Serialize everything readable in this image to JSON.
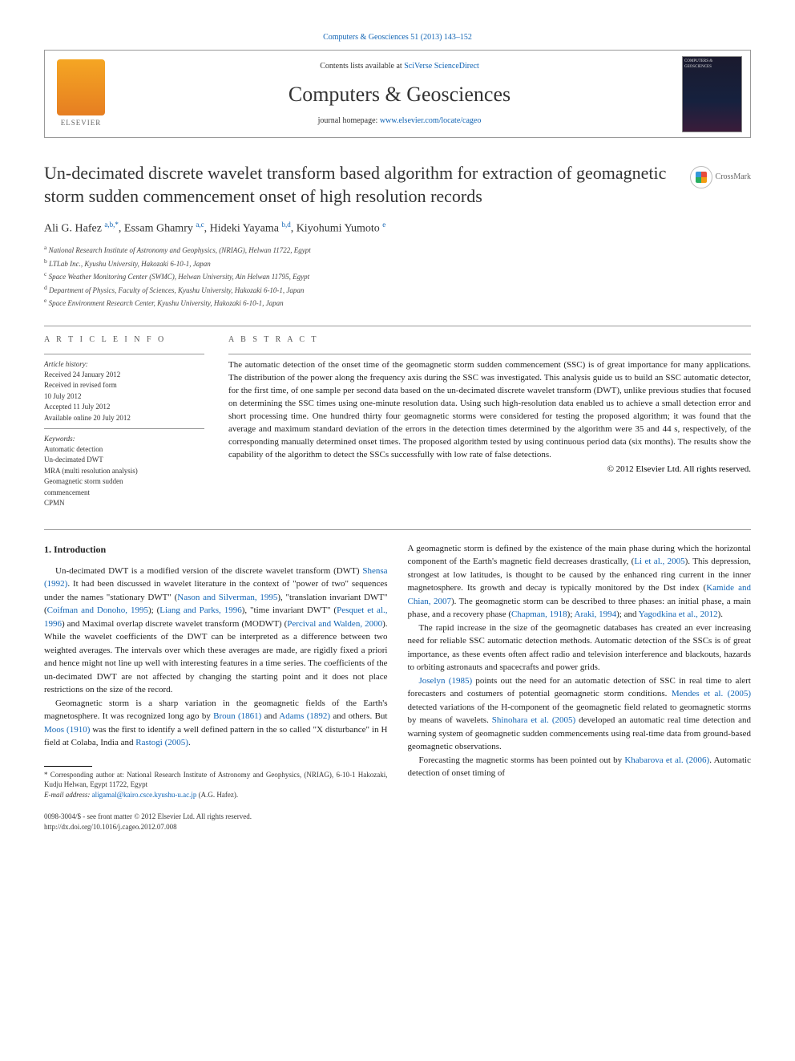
{
  "top_citation": "Computers & Geosciences 51 (2013) 143–152",
  "header": {
    "contents_pre": "Contents lists available at ",
    "contents_link": "SciVerse ScienceDirect",
    "journal_name": "Computers & Geosciences",
    "homepage_pre": "journal homepage: ",
    "homepage_link": "www.elsevier.com/locate/cageo",
    "elsevier_label": "ELSEVIER",
    "cover_text": "COMPUTERS & GEOSCIENCES"
  },
  "crossmark_label": "CrossMark",
  "title": "Un-decimated discrete wavelet transform based algorithm for extraction of geomagnetic storm sudden commencement onset of high resolution records",
  "authors_line": "Ali G. Hafez ",
  "author_sup1": "a,b,",
  "author_sup1_star": "*",
  "author2": ", Essam Ghamry ",
  "author_sup2": "a,c",
  "author3": ", Hideki Yayama ",
  "author_sup3": "b,d",
  "author4": ", Kiyohumi Yumoto ",
  "author_sup4": "e",
  "affiliations": {
    "a": "National Research Institute of Astronomy and Geophysics, (NRIAG), Helwan 11722, Egypt",
    "b": "LTLab Inc., Kyushu University, Hakozaki 6-10-1, Japan",
    "c": "Space Weather Monitoring Center (SWMC), Helwan University, Ain Helwan 11795, Egypt",
    "d": "Department of Physics, Faculty of Sciences, Kyushu University, Hakozaki 6-10-1, Japan",
    "e": "Space Environment Research Center, Kyushu University, Hakozaki 6-10-1, Japan"
  },
  "article_info_heading": "A R T I C L E  I N F O",
  "history": {
    "label": "Article history:",
    "items": [
      "Received 24 January 2012",
      "Received in revised form",
      "10 July 2012",
      "Accepted 11 July 2012",
      "Available online 20 July 2012"
    ]
  },
  "keywords_label": "Keywords:",
  "keywords": [
    "Automatic detection",
    "Un-decimated DWT",
    "MRA (multi resolution analysis)",
    "Geomagnetic storm sudden",
    "commencement",
    "CPMN"
  ],
  "abstract_heading": "A B S T R A C T",
  "abstract": "The automatic detection of the onset time of the geomagnetic storm sudden commencement (SSC) is of great importance for many applications. The distribution of the power along the frequency axis during the SSC was investigated. This analysis guide us to build an SSC automatic detector, for the first time, of one sample per second data based on the un-decimated discrete wavelet transform (DWT), unlike previous studies that focused on determining the SSC times using one-minute resolution data. Using such high-resolution data enabled us to achieve a small detection error and short processing time. One hundred thirty four geomagnetic storms were considered for testing the proposed algorithm; it was found that the average and maximum standard deviation of the errors in the detection times determined by the algorithm were 35 and 44 s, respectively, of the corresponding manually determined onset times. The proposed algorithm tested by using continuous period data (six months). The results show the capability of the algorithm to detect the SSCs successfully with low rate of false detections.",
  "copyright": "© 2012 Elsevier Ltd. All rights reserved.",
  "intro_heading": "1.  Introduction",
  "col1": {
    "p1_a": "Un-decimated DWT is a modified version of the discrete wavelet transform (DWT) ",
    "p1_c1": "Shensa (1992)",
    "p1_b": ". It had been discussed in wavelet literature in the context of \"power of two\" sequences under the names \"stationary DWT\" (",
    "p1_c2": "Nason and Silverman, 1995",
    "p1_c": "), \"translation invariant DWT\" (",
    "p1_c3": "Coifman and Donoho, 1995",
    "p1_d": "); (",
    "p1_c4": "Liang and Parks, 1996",
    "p1_e": "), \"time invariant DWT\" (",
    "p1_c5": "Pesquet et al., 1996",
    "p1_f": ") and Maximal overlap discrete wavelet transform (MODWT) (",
    "p1_c6": "Percival and Walden, 2000",
    "p1_g": "). While the wavelet coefficients of the DWT can be interpreted as a difference between two weighted averages. The intervals over which these averages are made, are rigidly fixed a priori and hence might not line up well with interesting features in a time series. The coefficients of the un-decimated DWT are not affected by changing the starting point and it does not place restrictions on the size of the record.",
    "p2_a": "Geomagnetic storm is a sharp variation in the geomagnetic fields of the Earth's magnetosphere. It was recognized long ago by ",
    "p2_c1": "Broun (1861)",
    "p2_b": " and ",
    "p2_c2": "Adams (1892)",
    "p2_c": " and others. But ",
    "p2_c3": "Moos (1910)",
    "p2_d": " was the first to identify a well defined pattern in the so called \"X disturbance\" in H field at Colaba, India and ",
    "p2_c4": "Rastogi (2005)",
    "p2_e": "."
  },
  "col2": {
    "p1_a": "A geomagnetic storm is defined by the existence of the main phase during which the horizontal component of the Earth's magnetic field decreases drastically, (",
    "p1_c1": "Li et al., 2005",
    "p1_b": "). This depression, strongest at low latitudes, is thought to be caused by the enhanced ring current in the inner magnetosphere. Its growth and decay is typically monitored by the Dst index (",
    "p1_c2": "Kamide and Chian, 2007",
    "p1_c": "). The geomagnetic storm can be described to three phases: an initial phase, a main phase, and a recovery phase (",
    "p1_c3": "Chapman, 1918",
    "p1_d": "); ",
    "p1_c4": "Araki, 1994",
    "p1_e": "); and ",
    "p1_c5": "Yagodkina et al., 2012",
    "p1_f": ").",
    "p2": "The rapid increase in the size of the geomagnetic databases has created an ever increasing need for reliable SSC automatic detection methods. Automatic detection of the SSCs is of great importance, as these events often affect radio and television interference and blackouts, hazards to orbiting astronauts and spacecrafts and power grids.",
    "p3_c1": "Joselyn (1985)",
    "p3_a": " points out the need for an automatic detection of SSC in real time to alert forecasters and costumers of potential geomagnetic storm conditions. ",
    "p3_c2": "Mendes et al. (2005)",
    "p3_b": " detected variations of the H-component of the geomagnetic field related to geomagnetic storms by means of wavelets. ",
    "p3_c3": "Shinohara et al. (2005)",
    "p3_c": " developed an automatic real time detection and warning system of geomagnetic sudden commencements using real-time data from ground-based geomagnetic observations.",
    "p4_a": "Forecasting the magnetic storms has been pointed out by ",
    "p4_c1": "Khabarova et al. (2006)",
    "p4_b": ". Automatic detection of onset timing of"
  },
  "footnote": {
    "corr_label": "* Corresponding author at: National Research Institute of Astronomy and Geophysics, (NRIAG), 6-10-1 Hakozaki, Kudju Helwan, Egypt 11722, Egypt",
    "email_label": "E-mail address: ",
    "email": "aligamal@kairo.csce.kyushu-u.ac.jp",
    "email_suffix": " (A.G. Hafez)."
  },
  "footer": {
    "issn": "0098-3004/$ - see front matter © 2012 Elsevier Ltd. All rights reserved.",
    "doi": "http://dx.doi.org/10.1016/j.cageo.2012.07.008"
  }
}
